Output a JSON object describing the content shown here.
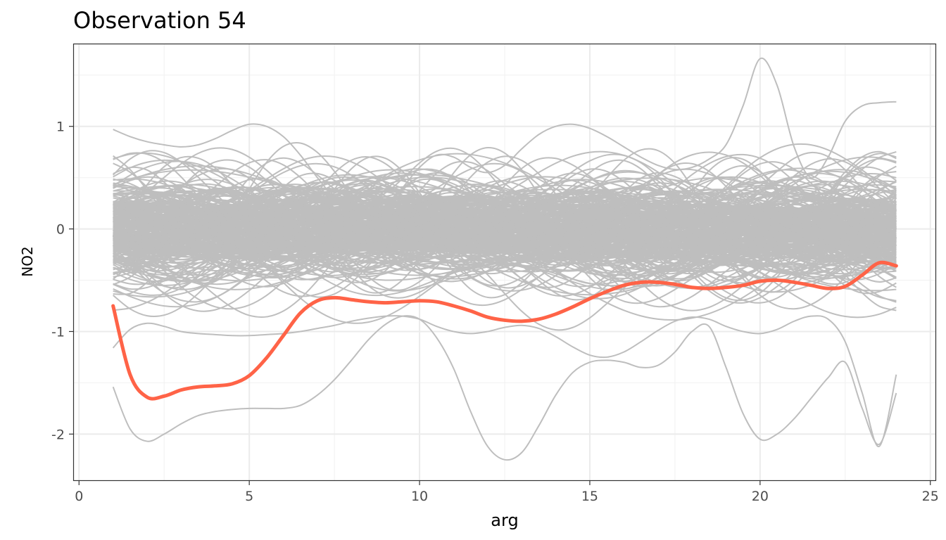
{
  "chart_data": {
    "type": "line",
    "title": "Observation 54",
    "xlabel": "arg",
    "ylabel": "NO2",
    "xlim": [
      -0.15,
      25.15
    ],
    "ylim": [
      -2.45,
      1.8
    ],
    "x_ticks": [
      0,
      5,
      10,
      15,
      20,
      25
    ],
    "x_tick_labels": [
      "0",
      "5",
      "10",
      "15",
      "20",
      "25"
    ],
    "y_ticks": [
      -2,
      -1,
      0,
      1
    ],
    "y_tick_labels": [
      "-2",
      "-1",
      "0",
      "1"
    ],
    "grid": true,
    "x": [
      1,
      1.5,
      2,
      2.5,
      3,
      3.5,
      4,
      4.5,
      5,
      5.5,
      6,
      6.5,
      7,
      7.5,
      8,
      8.5,
      9,
      9.5,
      10,
      10.5,
      11,
      11.5,
      12,
      12.5,
      13,
      13.5,
      14,
      14.5,
      15,
      15.5,
      16,
      16.5,
      17,
      17.5,
      18,
      18.5,
      19,
      19.5,
      20,
      20.5,
      21,
      21.5,
      22,
      22.5,
      23,
      23.5,
      24
    ],
    "background_curve_count": 300,
    "background_color": "#bebebe",
    "highlight_color": "#ff6347",
    "highlight": {
      "y": [
        -0.75,
        -1.42,
        -1.64,
        -1.63,
        -1.57,
        -1.54,
        -1.53,
        -1.51,
        -1.43,
        -1.26,
        -1.04,
        -0.82,
        -0.7,
        -0.67,
        -0.69,
        -0.71,
        -0.72,
        -0.71,
        -0.7,
        -0.71,
        -0.75,
        -0.8,
        -0.86,
        -0.89,
        -0.9,
        -0.88,
        -0.83,
        -0.76,
        -0.68,
        -0.61,
        -0.55,
        -0.52,
        -0.52,
        -0.54,
        -0.57,
        -0.58,
        -0.57,
        -0.55,
        -0.51,
        -0.5,
        -0.52,
        -0.55,
        -0.58,
        -0.56,
        -0.45,
        -0.33,
        -0.36
      ]
    },
    "outlier_curves": [
      {
        "y": [
          -1.54,
          -1.95,
          -2.07,
          -2.0,
          -1.9,
          -1.82,
          -1.78,
          -1.76,
          -1.75,
          -1.75,
          -1.75,
          -1.72,
          -1.62,
          -1.47,
          -1.28,
          -1.08,
          -0.93,
          -0.85,
          -0.88,
          -1.06,
          -1.36,
          -1.78,
          -2.12,
          -2.25,
          -2.18,
          -1.92,
          -1.62,
          -1.4,
          -1.3,
          -1.28,
          -1.3,
          -1.35,
          -1.33,
          -1.2,
          -1.0,
          -0.95,
          -1.35,
          -1.8,
          -2.05,
          -2.0,
          -1.85,
          -1.65,
          -1.45,
          -1.3,
          -1.75,
          -2.1,
          -1.6
        ]
      },
      {
        "y": [
          -1.16,
          -0.98,
          -0.92,
          -0.95,
          -1.0,
          -1.02,
          -1.03,
          -1.04,
          -1.04,
          -1.03,
          -1.02,
          -1.0,
          -0.97,
          -0.94,
          -0.9,
          -0.87,
          -0.85,
          -0.85,
          -0.88,
          -0.95,
          -1.0,
          -1.02,
          -1.0,
          -0.96,
          -0.94,
          -0.97,
          -1.05,
          -1.15,
          -1.23,
          -1.25,
          -1.2,
          -1.1,
          -0.99,
          -0.9,
          -0.86,
          -0.88,
          -0.95,
          -1.0,
          -1.02,
          -0.98,
          -0.9,
          -0.85,
          -0.88,
          -1.1,
          -1.6,
          -2.12,
          -1.42
        ]
      },
      {
        "y": [
          0.97,
          0.9,
          0.85,
          0.82,
          0.8,
          0.82,
          0.88,
          0.96,
          1.02,
          1.0,
          0.9,
          0.72,
          0.5,
          0.3,
          0.15,
          0.1,
          0.2,
          0.4,
          0.6,
          0.72,
          0.7,
          0.6,
          0.55,
          0.62,
          0.78,
          0.92,
          1.0,
          1.02,
          0.98,
          0.9,
          0.8,
          0.7,
          0.62,
          0.58,
          0.6,
          0.68,
          0.82,
          1.2,
          1.66,
          1.4,
          0.8,
          0.5,
          0.7,
          1.05,
          1.2,
          1.23,
          1.24
        ]
      }
    ]
  }
}
